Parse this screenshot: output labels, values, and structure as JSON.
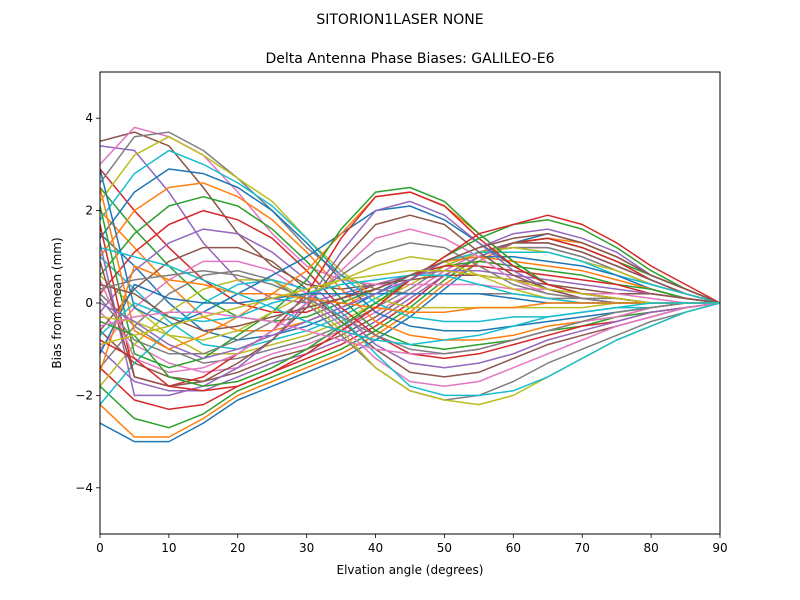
{
  "chart_data": {
    "type": "line",
    "suptitle": "SITORION1LASER  NONE",
    "title": "Delta Antenna Phase Biases: GALILEO-E6",
    "xlabel": "Elvation angle (degrees)",
    "ylabel": "Bias from mean (mm)",
    "xlim": [
      0,
      90
    ],
    "ylim": [
      -5,
      5
    ],
    "xticks": [
      0,
      10,
      20,
      30,
      40,
      50,
      60,
      70,
      80,
      90
    ],
    "xtick_labels": [
      "0",
      "10",
      "20",
      "30",
      "40",
      "50",
      "60",
      "70",
      "80",
      "90"
    ],
    "yticks": [
      -4,
      -2,
      0,
      2,
      4
    ],
    "ytick_labels": [
      "−4",
      "−2",
      "0",
      "2",
      "4"
    ],
    "grid": false,
    "legend": "none",
    "x": [
      0,
      5,
      10,
      15,
      20,
      25,
      30,
      35,
      40,
      45,
      50,
      55,
      60,
      65,
      70,
      75,
      80,
      85,
      90
    ],
    "series_colors": [
      "#1f77b4",
      "#ff7f0e",
      "#2ca02c",
      "#d62728",
      "#9467bd",
      "#8c564b",
      "#e377c2",
      "#7f7f7f",
      "#bcbd22",
      "#17becf"
    ],
    "series": [
      {
        "values": [
          -2.6,
          -3.0,
          -3.0,
          -2.6,
          -2.1,
          -1.8,
          -1.5,
          -1.2,
          -0.8,
          -0.3,
          0.3,
          0.9,
          1.3,
          1.5,
          1.3,
          1.0,
          0.6,
          0.3,
          0.0
        ]
      },
      {
        "values": [
          -2.2,
          -2.9,
          -2.9,
          -2.5,
          -2.0,
          -1.7,
          -1.4,
          -1.1,
          -0.7,
          -0.2,
          0.4,
          0.9,
          1.3,
          1.4,
          1.3,
          1.0,
          0.6,
          0.3,
          0.0
        ]
      },
      {
        "values": [
          -1.8,
          -2.5,
          -2.7,
          -2.4,
          -1.9,
          -1.6,
          -1.3,
          -1.0,
          -0.6,
          -0.1,
          0.5,
          1.0,
          1.3,
          1.4,
          1.2,
          0.9,
          0.6,
          0.3,
          0.0
        ]
      },
      {
        "values": [
          -1.4,
          -2.1,
          -2.3,
          -2.2,
          -1.8,
          -1.5,
          -1.2,
          -0.9,
          -0.5,
          0.0,
          0.6,
          1.0,
          1.3,
          1.4,
          1.2,
          0.9,
          0.5,
          0.2,
          0.0
        ]
      },
      {
        "values": [
          -1.0,
          -1.7,
          -1.9,
          -1.9,
          -1.6,
          -1.3,
          -1.1,
          -0.8,
          -0.4,
          0.1,
          0.6,
          1.0,
          1.3,
          1.3,
          1.1,
          0.8,
          0.5,
          0.2,
          0.0
        ]
      },
      {
        "values": [
          -0.6,
          -1.3,
          -1.6,
          -1.7,
          -1.5,
          -1.2,
          -1.0,
          -0.7,
          -0.3,
          0.2,
          0.7,
          1.1,
          1.3,
          1.3,
          1.1,
          0.8,
          0.5,
          0.2,
          0.0
        ]
      },
      {
        "values": [
          -0.2,
          -0.9,
          -1.3,
          -1.5,
          -1.4,
          -1.1,
          -0.9,
          -0.6,
          -0.2,
          0.2,
          0.7,
          1.1,
          1.2,
          1.2,
          1.0,
          0.7,
          0.4,
          0.2,
          0.0
        ]
      },
      {
        "values": [
          0.2,
          -0.5,
          -1.0,
          -1.3,
          -1.2,
          -1.0,
          -0.8,
          -0.5,
          -0.1,
          0.3,
          0.8,
          1.1,
          1.2,
          1.2,
          1.0,
          0.7,
          0.4,
          0.2,
          0.0
        ]
      },
      {
        "values": [
          0.6,
          -0.1,
          -0.7,
          -1.1,
          -1.1,
          -0.9,
          -0.7,
          -0.4,
          0.0,
          0.4,
          0.8,
          1.1,
          1.2,
          1.1,
          0.9,
          0.7,
          0.4,
          0.2,
          0.0
        ]
      },
      {
        "values": [
          1.0,
          0.3,
          -0.4,
          -0.9,
          -1.0,
          -0.8,
          -0.6,
          -0.3,
          0.1,
          0.5,
          0.9,
          1.1,
          1.1,
          1.1,
          0.9,
          0.6,
          0.4,
          0.2,
          0.0
        ]
      },
      {
        "values": [
          1.5,
          0.8,
          0.0,
          -0.6,
          -0.8,
          -0.7,
          -0.5,
          -0.2,
          0.2,
          0.6,
          0.9,
          1.0,
          1.0,
          0.9,
          0.8,
          0.6,
          0.3,
          0.1,
          0.0
        ]
      },
      {
        "values": [
          2.0,
          1.2,
          0.4,
          -0.3,
          -0.6,
          -0.6,
          -0.4,
          -0.1,
          0.3,
          0.6,
          0.9,
          1.0,
          0.9,
          0.8,
          0.7,
          0.5,
          0.3,
          0.1,
          0.0
        ]
      },
      {
        "values": [
          2.5,
          1.6,
          0.8,
          0.1,
          -0.3,
          -0.4,
          -0.3,
          0.0,
          0.3,
          0.6,
          0.8,
          0.9,
          0.8,
          0.7,
          0.6,
          0.4,
          0.3,
          0.1,
          0.0
        ]
      },
      {
        "values": [
          2.9,
          2.0,
          1.2,
          0.5,
          0.0,
          -0.2,
          -0.2,
          0.1,
          0.4,
          0.6,
          0.8,
          0.8,
          0.7,
          0.6,
          0.5,
          0.4,
          0.2,
          0.1,
          0.0
        ]
      },
      {
        "values": [
          3.4,
          3.3,
          2.4,
          1.3,
          0.5,
          0.1,
          0.0,
          0.2,
          0.4,
          0.6,
          0.7,
          0.7,
          0.6,
          0.5,
          0.4,
          0.3,
          0.2,
          0.1,
          0.0
        ]
      },
      {
        "values": [
          3.5,
          3.7,
          3.4,
          2.5,
          1.5,
          0.8,
          0.4,
          0.3,
          0.4,
          0.5,
          0.6,
          0.6,
          0.5,
          0.4,
          0.3,
          0.2,
          0.2,
          0.1,
          0.0
        ]
      },
      {
        "values": [
          3.0,
          3.8,
          3.6,
          3.2,
          2.4,
          1.5,
          0.8,
          0.5,
          0.4,
          0.4,
          0.4,
          0.4,
          0.3,
          0.3,
          0.2,
          0.2,
          0.1,
          0.0,
          0.0
        ]
      },
      {
        "values": [
          2.6,
          3.6,
          3.7,
          3.3,
          2.7,
          2.0,
          1.2,
          0.6,
          0.3,
          0.2,
          0.2,
          0.2,
          0.2,
          0.1,
          0.1,
          0.1,
          0.0,
          0.0,
          0.0
        ]
      },
      {
        "values": [
          2.2,
          3.2,
          3.6,
          3.2,
          2.7,
          2.2,
          1.4,
          0.7,
          0.1,
          -0.1,
          -0.1,
          -0.1,
          -0.1,
          -0.1,
          -0.1,
          0.0,
          0.0,
          0.0,
          0.0
        ]
      },
      {
        "values": [
          1.8,
          2.8,
          3.3,
          3.0,
          2.6,
          2.1,
          1.4,
          0.6,
          0.0,
          -0.3,
          -0.4,
          -0.4,
          -0.3,
          -0.3,
          -0.2,
          -0.1,
          -0.1,
          0.0,
          0.0
        ]
      },
      {
        "values": [
          1.4,
          2.4,
          2.9,
          2.8,
          2.5,
          2.0,
          1.3,
          0.5,
          -0.2,
          -0.5,
          -0.6,
          -0.6,
          -0.5,
          -0.4,
          -0.3,
          -0.2,
          -0.1,
          0.0,
          0.0
        ]
      },
      {
        "values": [
          1.0,
          2.0,
          2.5,
          2.6,
          2.3,
          1.8,
          1.1,
          0.3,
          -0.4,
          -0.7,
          -0.8,
          -0.8,
          -0.7,
          -0.5,
          -0.4,
          -0.3,
          -0.1,
          0.0,
          0.0
        ]
      },
      {
        "values": [
          0.6,
          1.5,
          2.1,
          2.3,
          2.1,
          1.6,
          0.9,
          0.1,
          -0.6,
          -0.9,
          -1.0,
          -0.9,
          -0.8,
          -0.6,
          -0.5,
          -0.3,
          -0.2,
          -0.1,
          0.0
        ]
      },
      {
        "values": [
          0.2,
          1.1,
          1.7,
          2.0,
          1.8,
          1.4,
          0.7,
          -0.1,
          -0.7,
          -1.1,
          -1.2,
          -1.1,
          -0.9,
          -0.7,
          -0.5,
          -0.4,
          -0.2,
          -0.1,
          0.0
        ]
      },
      {
        "values": [
          -0.2,
          0.7,
          1.3,
          1.6,
          1.5,
          1.1,
          0.5,
          -0.2,
          -0.9,
          -1.3,
          -1.4,
          -1.3,
          -1.1,
          -0.8,
          -0.6,
          -0.4,
          -0.2,
          -0.1,
          0.0
        ]
      },
      {
        "values": [
          -0.6,
          0.3,
          0.9,
          1.2,
          1.2,
          0.9,
          0.3,
          -0.4,
          -1.0,
          -1.5,
          -1.6,
          -1.5,
          -1.2,
          -0.9,
          -0.7,
          -0.5,
          -0.3,
          -0.1,
          0.0
        ]
      },
      {
        "values": [
          -1.0,
          -0.1,
          0.5,
          0.9,
          0.9,
          0.7,
          0.2,
          -0.5,
          -1.2,
          -1.7,
          -1.8,
          -1.7,
          -1.4,
          -1.1,
          -0.8,
          -0.5,
          -0.3,
          -0.1,
          0.0
        ]
      },
      {
        "values": [
          -1.4,
          -0.5,
          0.2,
          0.6,
          0.7,
          0.5,
          0.0,
          -0.7,
          -1.4,
          -1.9,
          -2.1,
          -2.0,
          -1.7,
          -1.3,
          -1.0,
          -0.7,
          -0.4,
          -0.2,
          0.0
        ]
      },
      {
        "values": [
          -1.8,
          -0.9,
          -0.2,
          0.3,
          0.5,
          0.5,
          0.1,
          -0.6,
          -1.4,
          -1.9,
          -2.1,
          -2.2,
          -2.0,
          -1.6,
          -1.2,
          -0.8,
          -0.5,
          -0.2,
          0.0
        ]
      },
      {
        "values": [
          -2.2,
          -1.3,
          -0.6,
          0.0,
          0.4,
          0.5,
          0.3,
          -0.3,
          -1.1,
          -1.8,
          -2.0,
          -2.0,
          -1.9,
          -1.6,
          -1.2,
          -0.8,
          -0.5,
          -0.2,
          0.0
        ]
      },
      {
        "values": [
          2.9,
          -0.1,
          -0.5,
          -0.2,
          0.2,
          0.6,
          1.0,
          1.5,
          2.0,
          2.1,
          1.8,
          1.3,
          0.8,
          0.4,
          0.2,
          0.1,
          0.0,
          0.0,
          0.0
        ]
      },
      {
        "values": [
          2.5,
          -0.6,
          -1.0,
          -0.7,
          -0.3,
          0.2,
          0.7,
          1.5,
          2.3,
          2.4,
          2.1,
          1.5,
          0.9,
          0.4,
          0.2,
          0.1,
          0.0,
          0.0,
          0.0
        ]
      },
      {
        "values": [
          2.1,
          -1.1,
          -1.4,
          -1.2,
          -0.7,
          -0.2,
          0.5,
          1.6,
          2.4,
          2.5,
          2.2,
          1.5,
          0.9,
          0.4,
          0.2,
          0.1,
          0.0,
          0.0,
          0.0
        ]
      },
      {
        "values": [
          1.7,
          -1.6,
          -1.8,
          -1.6,
          -1.1,
          -0.6,
          0.2,
          1.4,
          2.3,
          2.4,
          2.1,
          1.4,
          0.8,
          0.4,
          0.2,
          0.1,
          0.0,
          0.0,
          0.0
        ]
      },
      {
        "values": [
          1.3,
          -2.0,
          -2.0,
          -1.8,
          -1.4,
          -0.8,
          0.0,
          1.1,
          2.0,
          2.2,
          1.9,
          1.3,
          0.7,
          0.3,
          0.1,
          0.0,
          0.0,
          0.0,
          0.0
        ]
      },
      {
        "values": [
          0.9,
          -1.6,
          -1.8,
          -1.7,
          -1.3,
          -0.8,
          -0.1,
          0.9,
          1.7,
          1.9,
          1.7,
          1.1,
          0.6,
          0.3,
          0.1,
          0.0,
          0.0,
          0.0,
          0.0
        ]
      },
      {
        "values": [
          0.5,
          -1.2,
          -1.5,
          -1.4,
          -1.1,
          -0.6,
          0.0,
          0.7,
          1.4,
          1.6,
          1.4,
          1.0,
          0.5,
          0.2,
          0.1,
          0.0,
          0.0,
          0.0,
          0.0
        ]
      },
      {
        "values": [
          0.1,
          -0.8,
          -1.1,
          -1.1,
          -0.8,
          -0.4,
          0.1,
          0.6,
          1.1,
          1.3,
          1.2,
          0.8,
          0.4,
          0.2,
          0.1,
          0.0,
          0.0,
          0.0,
          0.0
        ]
      },
      {
        "values": [
          -0.3,
          -0.4,
          -0.7,
          -0.8,
          -0.6,
          -0.2,
          0.2,
          0.5,
          0.8,
          1.0,
          0.9,
          0.6,
          0.3,
          0.1,
          0.0,
          0.0,
          0.0,
          0.0,
          0.0
        ]
      },
      {
        "values": [
          -0.7,
          0.0,
          -0.3,
          -0.4,
          -0.3,
          0.0,
          0.2,
          0.4,
          0.5,
          0.6,
          0.6,
          0.4,
          0.2,
          0.1,
          0.0,
          0.0,
          0.0,
          0.0,
          0.0
        ]
      },
      {
        "values": [
          -1.1,
          0.4,
          0.1,
          0.0,
          0.0,
          0.1,
          0.2,
          0.2,
          0.2,
          0.2,
          0.2,
          0.2,
          0.1,
          0.0,
          0.0,
          0.0,
          0.0,
          0.0,
          0.0
        ]
      },
      {
        "values": [
          -1.5,
          0.8,
          0.5,
          0.4,
          0.2,
          0.2,
          0.1,
          0.0,
          -0.1,
          -0.2,
          -0.2,
          -0.1,
          -0.1,
          0.0,
          0.0,
          0.0,
          0.0,
          0.0,
          0.0
        ]
      },
      {
        "values": [
          -0.4,
          -0.7,
          -1.6,
          -1.8,
          -1.7,
          -1.4,
          -1.0,
          -0.5,
          0.0,
          0.5,
          1.0,
          1.4,
          1.7,
          1.8,
          1.6,
          1.2,
          0.7,
          0.3,
          0.0
        ]
      },
      {
        "values": [
          -0.8,
          -1.2,
          -1.8,
          -1.9,
          -1.8,
          -1.5,
          -1.1,
          -0.6,
          -0.1,
          0.5,
          1.0,
          1.5,
          1.7,
          1.9,
          1.7,
          1.3,
          0.8,
          0.4,
          0.0
        ]
      },
      {
        "values": [
          0.0,
          -0.4,
          -0.9,
          -1.2,
          -1.0,
          -0.7,
          -0.4,
          -0.1,
          0.2,
          0.5,
          0.9,
          1.2,
          1.5,
          1.6,
          1.4,
          1.1,
          0.6,
          0.3,
          0.0
        ]
      },
      {
        "values": [
          0.4,
          0.2,
          -0.3,
          -0.6,
          -0.5,
          -0.3,
          -0.1,
          0.1,
          0.3,
          0.6,
          0.9,
          1.2,
          1.4,
          1.5,
          1.3,
          1.0,
          0.6,
          0.3,
          0.0
        ]
      },
      {
        "values": [
          -0.5,
          -0.3,
          -0.2,
          -0.2,
          -0.3,
          -0.4,
          -0.6,
          -0.8,
          -1.0,
          -1.1,
          -1.1,
          -1.0,
          -0.8,
          -0.6,
          -0.4,
          -0.3,
          -0.1,
          0.0,
          0.0
        ]
      },
      {
        "values": [
          0.3,
          0.5,
          0.6,
          0.7,
          0.6,
          0.4,
          0.1,
          -0.3,
          -0.7,
          -1.0,
          -1.1,
          -1.0,
          -0.8,
          -0.6,
          -0.4,
          -0.2,
          -0.1,
          0.0,
          0.0
        ]
      },
      {
        "values": [
          -0.9,
          -0.7,
          -0.5,
          -0.3,
          -0.1,
          0.1,
          0.3,
          0.5,
          0.6,
          0.7,
          0.7,
          0.6,
          0.5,
          0.3,
          0.2,
          0.1,
          0.0,
          0.0,
          0.0
        ]
      },
      {
        "values": [
          1.2,
          1.0,
          0.8,
          0.5,
          0.2,
          -0.1,
          -0.4,
          -0.6,
          -0.8,
          -0.9,
          -0.8,
          -0.7,
          -0.5,
          -0.3,
          -0.2,
          -0.1,
          0.0,
          0.0,
          0.0
        ]
      }
    ]
  }
}
